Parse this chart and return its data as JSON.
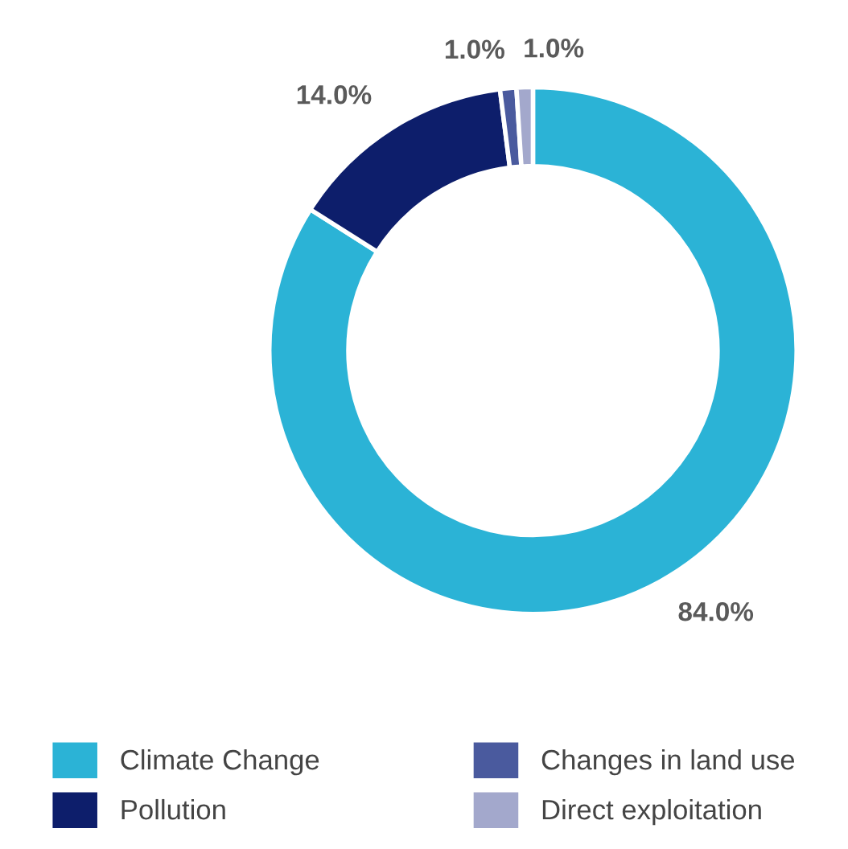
{
  "chart_data": {
    "type": "donut",
    "categories": [
      "Climate Change",
      "Pollution",
      "Changes in land use",
      "Direct exploitation"
    ],
    "values": [
      84.0,
      14.0,
      1.0,
      1.0
    ],
    "colors": [
      "#2bb3d6",
      "#0d1e6b",
      "#4a5a9e",
      "#a3a8cc"
    ],
    "value_labels": [
      "84.0%",
      "14.0%",
      "1.0%",
      "1.0%"
    ],
    "legend": "bottom"
  }
}
